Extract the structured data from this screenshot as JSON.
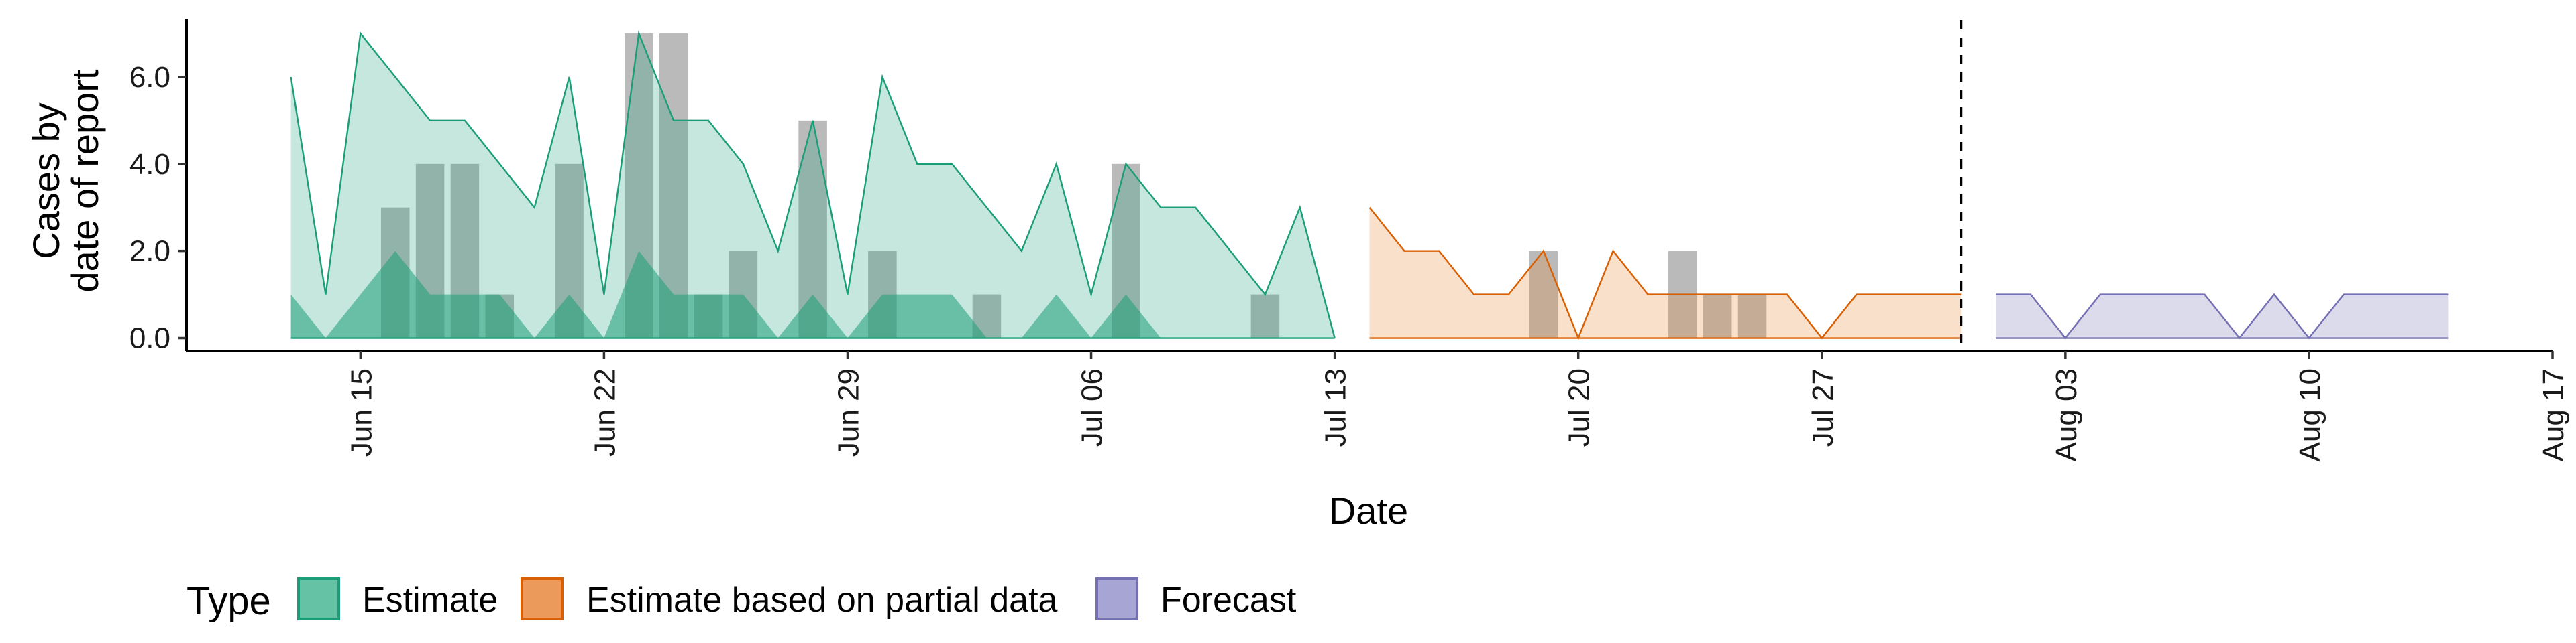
{
  "chart_data": {
    "type": "area",
    "x_type": "date",
    "xlabel": "Date",
    "ylabel_lines": [
      "Cases by",
      "date of report"
    ],
    "ylim": [
      -0.3,
      7.4
    ],
    "y_ticks": [
      "0.0",
      "2.0",
      "4.0",
      "6.0"
    ],
    "y_tick_values": [
      0,
      2,
      4,
      6
    ],
    "x_tick_labels": [
      "Jun 15",
      "Jun 22",
      "Jun 29",
      "Jul 06",
      "Jul 13",
      "Jul 20",
      "Jul 27",
      "Aug 03",
      "Aug 10",
      "Aug 17"
    ],
    "x_tick_dates": [
      "2020-06-15",
      "2020-06-22",
      "2020-06-29",
      "2020-07-06",
      "2020-07-13",
      "2020-07-20",
      "2020-07-27",
      "2020-08-03",
      "2020-08-10",
      "2020-08-17"
    ],
    "xlim": [
      "2020-06-10",
      "2020-08-17"
    ],
    "forecast_cutoff": "2020-07-31",
    "bars": [
      {
        "date": "2020-06-16",
        "value": 3
      },
      {
        "date": "2020-06-17",
        "value": 4
      },
      {
        "date": "2020-06-18",
        "value": 4
      },
      {
        "date": "2020-06-19",
        "value": 1
      },
      {
        "date": "2020-06-21",
        "value": 4
      },
      {
        "date": "2020-06-23",
        "value": 7
      },
      {
        "date": "2020-06-24",
        "value": 7
      },
      {
        "date": "2020-06-25",
        "value": 1
      },
      {
        "date": "2020-06-26",
        "value": 2
      },
      {
        "date": "2020-06-28",
        "value": 5
      },
      {
        "date": "2020-06-30",
        "value": 2
      },
      {
        "date": "2020-07-03",
        "value": 1
      },
      {
        "date": "2020-07-07",
        "value": 4
      },
      {
        "date": "2020-07-11",
        "value": 1
      },
      {
        "date": "2020-07-19",
        "value": 2
      },
      {
        "date": "2020-07-23",
        "value": 2
      },
      {
        "date": "2020-07-24",
        "value": 1
      },
      {
        "date": "2020-07-25",
        "value": 1
      }
    ],
    "series": [
      {
        "name": "Estimate",
        "type_key": "estimate",
        "color": "#1b9e77",
        "fill": "#1b9e77",
        "upper": [
          [
            "2020-06-13",
            6
          ],
          [
            "2020-06-14",
            1
          ],
          [
            "2020-06-15",
            7
          ],
          [
            "2020-06-16",
            6
          ],
          [
            "2020-06-17",
            5
          ],
          [
            "2020-06-18",
            5
          ],
          [
            "2020-06-19",
            4
          ],
          [
            "2020-06-20",
            3
          ],
          [
            "2020-06-21",
            6
          ],
          [
            "2020-06-22",
            1
          ],
          [
            "2020-06-23",
            7
          ],
          [
            "2020-06-24",
            5
          ],
          [
            "2020-06-25",
            5
          ],
          [
            "2020-06-26",
            4
          ],
          [
            "2020-06-27",
            2
          ],
          [
            "2020-06-28",
            5
          ],
          [
            "2020-06-29",
            1
          ],
          [
            "2020-06-30",
            6
          ],
          [
            "2020-07-01",
            4
          ],
          [
            "2020-07-02",
            4
          ],
          [
            "2020-07-03",
            3
          ],
          [
            "2020-07-04",
            2
          ],
          [
            "2020-07-05",
            4
          ],
          [
            "2020-07-06",
            1
          ],
          [
            "2020-07-07",
            4
          ],
          [
            "2020-07-08",
            3
          ],
          [
            "2020-07-09",
            3
          ],
          [
            "2020-07-10",
            2
          ],
          [
            "2020-07-11",
            1
          ],
          [
            "2020-07-12",
            3
          ],
          [
            "2020-07-13",
            0
          ]
        ],
        "lower": [
          [
            "2020-06-13",
            1
          ],
          [
            "2020-06-14",
            0
          ],
          [
            "2020-06-15",
            1
          ],
          [
            "2020-06-16",
            2
          ],
          [
            "2020-06-17",
            1
          ],
          [
            "2020-06-18",
            1
          ],
          [
            "2020-06-19",
            1
          ],
          [
            "2020-06-20",
            0
          ],
          [
            "2020-06-21",
            1
          ],
          [
            "2020-06-22",
            0
          ],
          [
            "2020-06-23",
            2
          ],
          [
            "2020-06-24",
            1
          ],
          [
            "2020-06-25",
            1
          ],
          [
            "2020-06-26",
            1
          ],
          [
            "2020-06-27",
            0
          ],
          [
            "2020-06-28",
            1
          ],
          [
            "2020-06-29",
            0
          ],
          [
            "2020-06-30",
            1
          ],
          [
            "2020-07-01",
            1
          ],
          [
            "2020-07-02",
            1
          ],
          [
            "2020-07-03",
            0
          ],
          [
            "2020-07-04",
            0
          ],
          [
            "2020-07-05",
            1
          ],
          [
            "2020-07-06",
            0
          ],
          [
            "2020-07-07",
            1
          ],
          [
            "2020-07-08",
            0
          ],
          [
            "2020-07-09",
            0
          ],
          [
            "2020-07-10",
            0
          ],
          [
            "2020-07-11",
            0
          ],
          [
            "2020-07-12",
            0
          ],
          [
            "2020-07-13",
            0
          ]
        ]
      },
      {
        "name": "Estimate based on partial data",
        "type_key": "partial",
        "color": "#d95f02",
        "fill": "#e6822c",
        "upper": [
          [
            "2020-07-14",
            3
          ],
          [
            "2020-07-15",
            2
          ],
          [
            "2020-07-16",
            2
          ],
          [
            "2020-07-17",
            1
          ],
          [
            "2020-07-18",
            1
          ],
          [
            "2020-07-19",
            2
          ],
          [
            "2020-07-20",
            0
          ],
          [
            "2020-07-21",
            2
          ],
          [
            "2020-07-22",
            1
          ],
          [
            "2020-07-23",
            1
          ],
          [
            "2020-07-24",
            1
          ],
          [
            "2020-07-25",
            1
          ],
          [
            "2020-07-26",
            1
          ],
          [
            "2020-07-27",
            0
          ],
          [
            "2020-07-28",
            1
          ],
          [
            "2020-07-29",
            1
          ],
          [
            "2020-07-30",
            1
          ],
          [
            "2020-07-31",
            1
          ]
        ],
        "lower": [
          [
            "2020-07-14",
            0
          ],
          [
            "2020-07-15",
            0
          ],
          [
            "2020-07-16",
            0
          ],
          [
            "2020-07-17",
            0
          ],
          [
            "2020-07-18",
            0
          ],
          [
            "2020-07-19",
            0
          ],
          [
            "2020-07-20",
            0
          ],
          [
            "2020-07-21",
            0
          ],
          [
            "2020-07-22",
            0
          ],
          [
            "2020-07-23",
            0
          ],
          [
            "2020-07-24",
            0
          ],
          [
            "2020-07-25",
            0
          ],
          [
            "2020-07-26",
            0
          ],
          [
            "2020-07-27",
            0
          ],
          [
            "2020-07-28",
            0
          ],
          [
            "2020-07-29",
            0
          ],
          [
            "2020-07-30",
            0
          ],
          [
            "2020-07-31",
            0
          ]
        ]
      },
      {
        "name": "Forecast",
        "type_key": "forecast",
        "color": "#7570b3",
        "fill": "#7570b3",
        "upper": [
          [
            "2020-08-01",
            1
          ],
          [
            "2020-08-02",
            1
          ],
          [
            "2020-08-03",
            0
          ],
          [
            "2020-08-04",
            1
          ],
          [
            "2020-08-05",
            1
          ],
          [
            "2020-08-06",
            1
          ],
          [
            "2020-08-07",
            1
          ],
          [
            "2020-08-08",
            0
          ],
          [
            "2020-08-09",
            1
          ],
          [
            "2020-08-10",
            0
          ],
          [
            "2020-08-11",
            1
          ],
          [
            "2020-08-12",
            1
          ],
          [
            "2020-08-13",
            1
          ],
          [
            "2020-08-14",
            1
          ]
        ],
        "lower": [
          [
            "2020-08-01",
            0
          ],
          [
            "2020-08-02",
            0
          ],
          [
            "2020-08-03",
            0
          ],
          [
            "2020-08-04",
            0
          ],
          [
            "2020-08-05",
            0
          ],
          [
            "2020-08-06",
            0
          ],
          [
            "2020-08-07",
            0
          ],
          [
            "2020-08-08",
            0
          ],
          [
            "2020-08-09",
            0
          ],
          [
            "2020-08-10",
            0
          ],
          [
            "2020-08-11",
            0
          ],
          [
            "2020-08-12",
            0
          ],
          [
            "2020-08-13",
            0
          ],
          [
            "2020-08-14",
            0
          ]
        ]
      }
    ],
    "legend": {
      "title": "Type",
      "position": "bottom-left",
      "entries": [
        {
          "label": "Estimate",
          "fill": "#66c2a5",
          "stroke": "#1b9e77"
        },
        {
          "label": "Estimate based on partial data",
          "fill": "#ec9a5b",
          "stroke": "#d95f02"
        },
        {
          "label": "Forecast",
          "fill": "#a7a5d3",
          "stroke": "#7570b3"
        }
      ]
    },
    "bar_color": "#a0a0a0",
    "grid": false
  }
}
